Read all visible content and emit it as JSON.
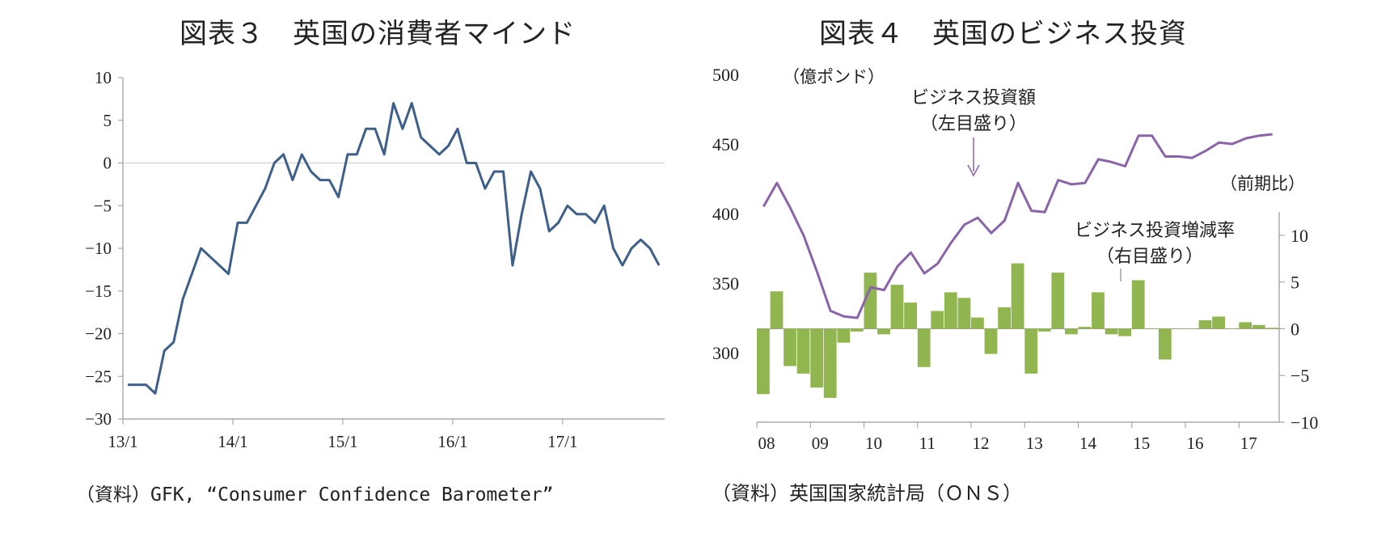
{
  "titles": {
    "left": "図表３　英国の消費者マインド",
    "right": "図表４　英国のビジネス投資"
  },
  "sources": {
    "left": "（資料）GFK, “Consumer Confidence Barometer”",
    "right": "（資料）英国国家統計局（ＯＮＳ）"
  },
  "colors": {
    "line_left": "#3d5f8a",
    "line_right": "#8a63a8",
    "bars": "#92b64f",
    "axis": "#999999"
  },
  "chart_data": [
    {
      "type": "line",
      "title": "図表３　英国の消費者マインド",
      "source": "（資料）GFK, “Consumer Confidence Barometer”",
      "x_tick_labels": [
        "13/1",
        "14/1",
        "15/1",
        "16/1",
        "17/1"
      ],
      "x_start": "2013-01",
      "ylim": [
        -30,
        10
      ],
      "y_ticks": [
        10,
        5,
        0,
        -5,
        -10,
        -15,
        -20,
        -25,
        -30
      ],
      "y_tick_labels": [
        "10",
        "5",
        "0",
        "−5",
        "−10",
        "−15",
        "−20",
        "−25",
        "−30"
      ],
      "zero_line": true,
      "series": [
        {
          "values": [
            -26,
            -26,
            -26,
            -27,
            -22,
            -21,
            -16,
            -13,
            -10,
            -11,
            -12,
            -13,
            -7,
            -7,
            -5,
            -3,
            0,
            1,
            -2,
            1,
            -1,
            -2,
            -2,
            -4,
            1,
            1,
            4,
            4,
            1,
            7,
            4,
            7,
            3,
            2,
            1,
            2,
            4,
            0,
            0,
            -3,
            -1,
            -1,
            -12,
            -6,
            -1,
            -3,
            -8,
            -7,
            -5,
            -6,
            -6,
            -7,
            -5,
            -10,
            -12,
            -10,
            -9,
            -10,
            -12
          ]
        }
      ]
    },
    {
      "type": "bar+line",
      "title": "図表４　英国のビジネス投資",
      "source": "（資料）英国国家統計局（ＯＮＳ）",
      "x_tick_labels": [
        "08",
        "09",
        "10",
        "11",
        "12",
        "13",
        "14",
        "15",
        "16",
        "17"
      ],
      "x_start": "2008-Q1",
      "left_axis": {
        "unit_label": "（億ポンド）",
        "ticks": [
          500,
          450,
          400,
          350,
          300
        ],
        "range": [
          250,
          500
        ]
      },
      "right_axis": {
        "unit_label": "（前期比）",
        "ticks": [
          10,
          5,
          0,
          -5,
          -10
        ],
        "tick_labels": [
          "10",
          "5",
          "0",
          "−5",
          "−10"
        ],
        "range": [
          -10,
          12.5
        ]
      },
      "annotations": [
        {
          "text": [
            "ビジネス投資額",
            "（左目盛り）"
          ]
        },
        {
          "text": [
            "ビジネス投資増減率",
            "（右目盛り）"
          ]
        }
      ],
      "series": [
        {
          "name": "ビジネス投資額",
          "axis": "left",
          "type": "line",
          "values": [
            405,
            422,
            404,
            384,
            358,
            330,
            326,
            325,
            347,
            345,
            362,
            372,
            357,
            364,
            379,
            392,
            397,
            386,
            395,
            422,
            402,
            401,
            424,
            421,
            422,
            439,
            437,
            434,
            456,
            456,
            441,
            441,
            440,
            445,
            451,
            450,
            454,
            456,
            457
          ]
        },
        {
          "name": "ビジネス投資増減率",
          "axis": "right",
          "type": "bar",
          "values": [
            -7.0,
            4.0,
            -4.0,
            -4.8,
            -6.3,
            -7.4,
            -1.5,
            -0.3,
            6.0,
            -0.6,
            4.7,
            2.8,
            -4.1,
            1.9,
            3.9,
            3.3,
            1.2,
            -2.7,
            2.3,
            7.0,
            -4.8,
            -0.3,
            6.0,
            -0.6,
            0.2,
            3.9,
            -0.6,
            -0.8,
            5.2,
            0.0,
            -3.3,
            0.0,
            0.0,
            0.9,
            1.3,
            0.0,
            0.7,
            0.4,
            0.1
          ]
        }
      ]
    }
  ]
}
